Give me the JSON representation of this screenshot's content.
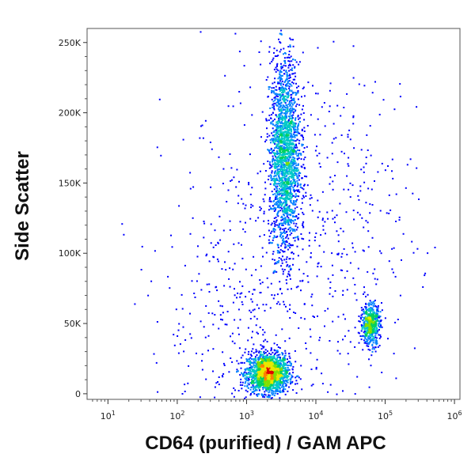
{
  "chart_data": {
    "type": "scatter",
    "subtype": "flow-cytometry-density-dot-plot",
    "xlabel": "CD64 (purified) / GAM APC",
    "ylabel": "Side Scatter",
    "x_scale": "log",
    "xlim": [
      5,
      1200000
    ],
    "ylim": [
      -4000,
      260000
    ],
    "x_ticks": [
      {
        "base": "10",
        "exp": "1",
        "value": 10
      },
      {
        "base": "10",
        "exp": "2",
        "value": 100
      },
      {
        "base": "10",
        "exp": "3",
        "value": 1000
      },
      {
        "base": "10",
        "exp": "4",
        "value": 10000
      },
      {
        "base": "10",
        "exp": "5",
        "value": 100000
      },
      {
        "base": "10",
        "exp": "6",
        "value": 1000000
      }
    ],
    "y_ticks": [
      {
        "label": "0",
        "value": 0
      },
      {
        "label": "50K",
        "value": 50000
      },
      {
        "label": "100K",
        "value": 100000
      },
      {
        "label": "150K",
        "value": 150000
      },
      {
        "label": "200K",
        "value": 200000
      },
      {
        "label": "250K",
        "value": 250000
      }
    ],
    "grid": false,
    "colormap": [
      "#00008b",
      "#0000ff",
      "#0080ff",
      "#00c8c8",
      "#00d060",
      "#80e000",
      "#e8e800",
      "#ff8000",
      "#e00000"
    ],
    "populations": [
      {
        "x_center": 2000,
        "y_center": 15000,
        "x_spread_decades": 0.15,
        "y_spread": 7000,
        "weight": 0.34,
        "density": "high"
      },
      {
        "x_center": 3500,
        "y_center": 170000,
        "x_spread_decades": 0.11,
        "y_spread": 35000,
        "weight": 0.4,
        "density": "medium"
      },
      {
        "x_center": 60000,
        "y_center": 50000,
        "x_spread_decades": 0.07,
        "y_spread": 7500,
        "weight": 0.1,
        "density": "medium"
      },
      {
        "x_center": 1000,
        "y_center": 60000,
        "x_spread_decades": 0.6,
        "y_spread": 70000,
        "weight": 0.1,
        "density": "low"
      },
      {
        "x_center": 30000,
        "y_center": 120000,
        "x_spread_decades": 0.5,
        "y_spread": 60000,
        "weight": 0.06,
        "density": "low"
      }
    ]
  }
}
